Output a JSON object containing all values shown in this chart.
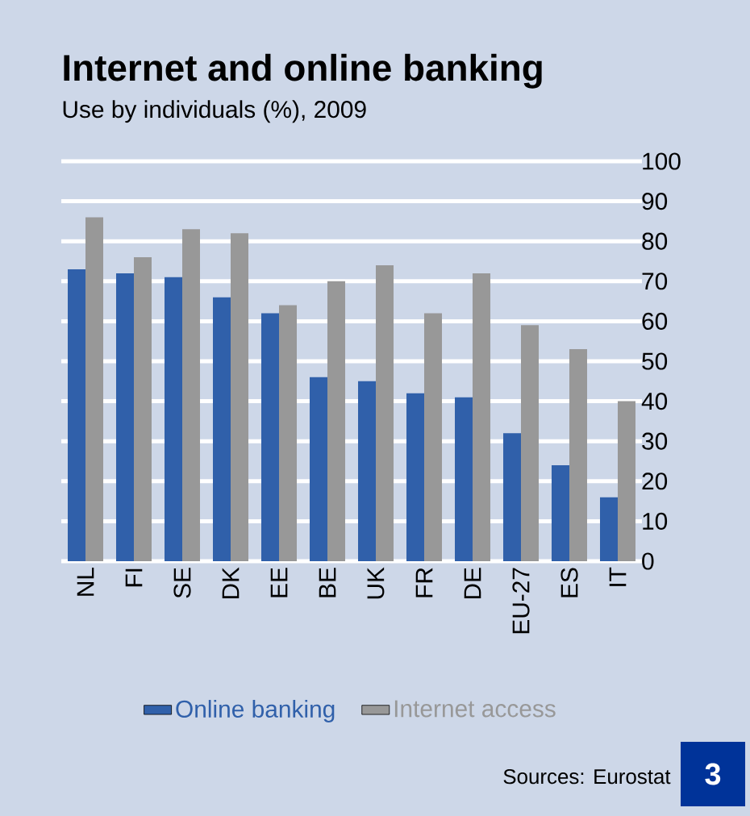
{
  "chart_data": {
    "type": "bar",
    "title": "Internet and online banking",
    "subtitle": "Use by individuals (%), 2009",
    "categories": [
      "NL",
      "FI",
      "SE",
      "DK",
      "EE",
      "BE",
      "UK",
      "FR",
      "DE",
      "EU-27",
      "ES",
      "IT"
    ],
    "series": [
      {
        "name": "Online banking",
        "color": "#3060aa",
        "values": [
          73,
          72,
          71,
          66,
          62,
          46,
          45,
          42,
          41,
          32,
          24,
          16
        ]
      },
      {
        "name": "Internet access",
        "color": "#989898",
        "values": [
          86,
          76,
          83,
          82,
          64,
          70,
          74,
          62,
          72,
          59,
          53,
          40
        ]
      }
    ],
    "ylim": [
      0,
      100
    ],
    "yticks": [
      0,
      10,
      20,
      30,
      40,
      50,
      60,
      70,
      80,
      90,
      100
    ],
    "grid": "y",
    "legend": "bottom",
    "annotations": [
      "Sources: Eurostat",
      "3"
    ]
  }
}
